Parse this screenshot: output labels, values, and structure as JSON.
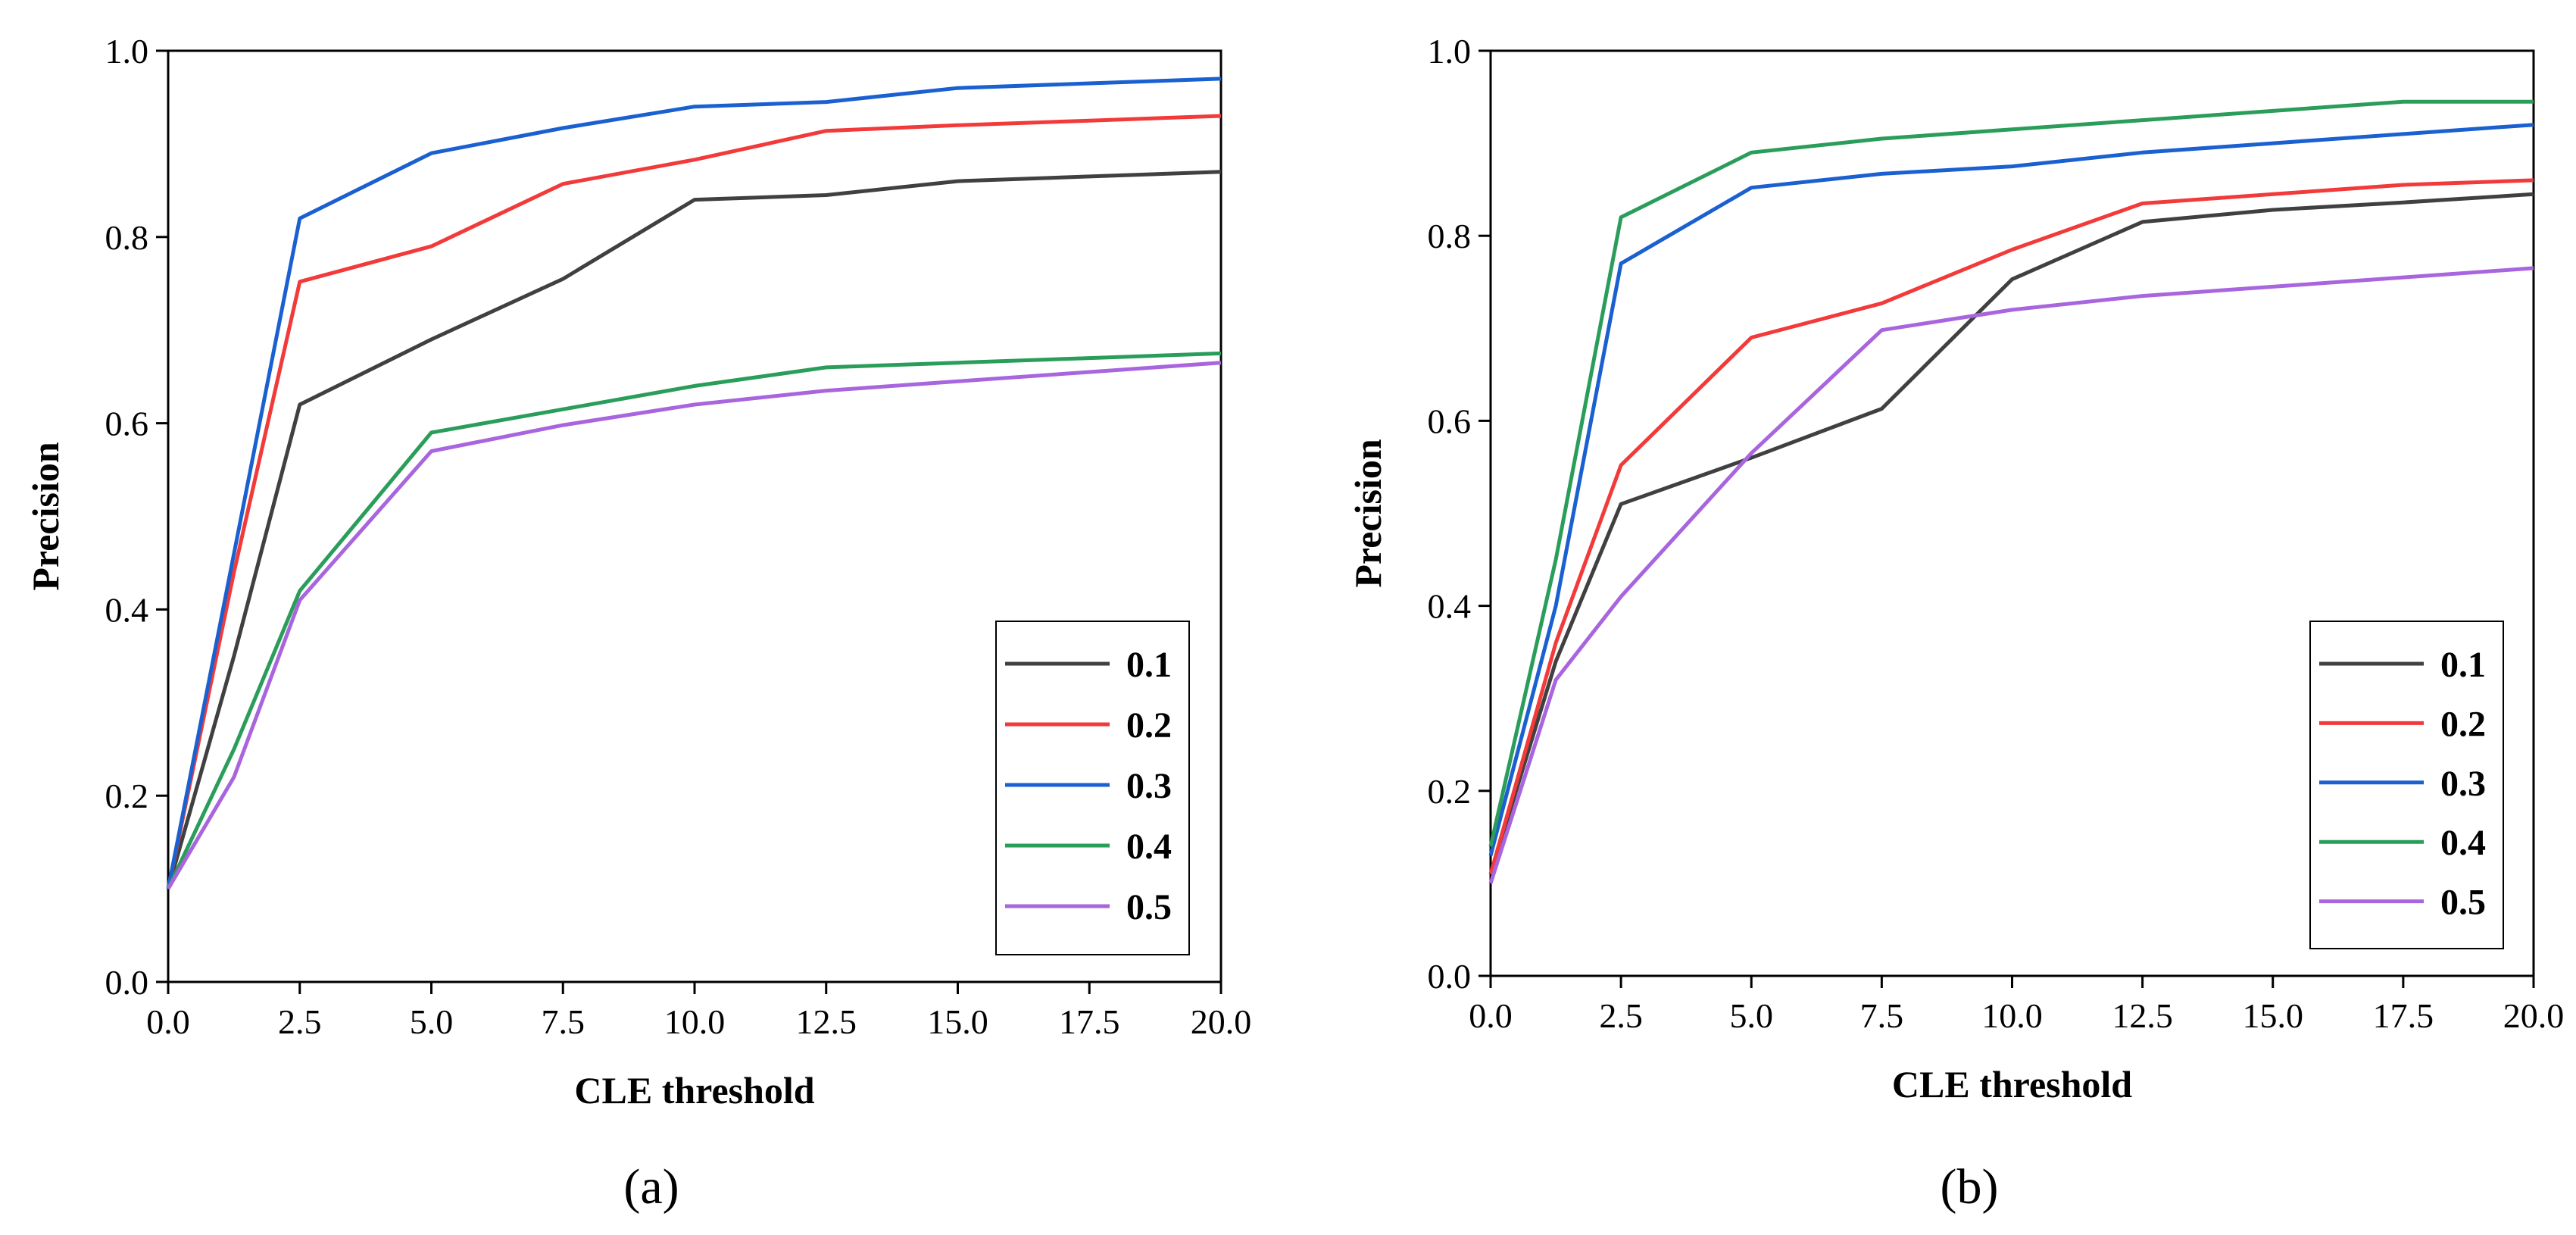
{
  "chart_data": [
    {
      "type": "line",
      "panel_label": "(a)",
      "xlabel": "CLE threshold",
      "ylabel": "Precision",
      "xlim": [
        0,
        20
      ],
      "ylim": [
        0,
        1
      ],
      "xticks": [
        "0.0",
        "2.5",
        "5.0",
        "7.5",
        "10.0",
        "12.5",
        "15.0",
        "17.5",
        "20.0"
      ],
      "yticks": [
        "0.0",
        "0.2",
        "0.4",
        "0.6",
        "0.8",
        "1.0"
      ],
      "grid": false,
      "legend": "bottom-right",
      "series": [
        {
          "name": "0.1",
          "color": "#404040",
          "points": [
            [
              0,
              0.1
            ],
            [
              1.25,
              0.35
            ],
            [
              2.5,
              0.62
            ],
            [
              5,
              0.69
            ],
            [
              7.5,
              0.755
            ],
            [
              10,
              0.84
            ],
            [
              12.5,
              0.845
            ],
            [
              15,
              0.86
            ],
            [
              17.5,
              0.865
            ],
            [
              20,
              0.87
            ]
          ]
        },
        {
          "name": "0.2",
          "color": "#f23a3a",
          "points": [
            [
              0,
              0.1
            ],
            [
              1.25,
              0.44
            ],
            [
              2.5,
              0.752
            ],
            [
              5,
              0.79
            ],
            [
              7.5,
              0.857
            ],
            [
              10,
              0.883
            ],
            [
              12.5,
              0.914
            ],
            [
              15,
              0.92
            ],
            [
              17.5,
              0.925
            ],
            [
              20,
              0.93
            ]
          ]
        },
        {
          "name": "0.3",
          "color": "#1a60d0",
          "points": [
            [
              0,
              0.1
            ],
            [
              1.25,
              0.46
            ],
            [
              2.5,
              0.82
            ],
            [
              5,
              0.89
            ],
            [
              7.5,
              0.917
            ],
            [
              10,
              0.94
            ],
            [
              12.5,
              0.945
            ],
            [
              15,
              0.96
            ],
            [
              17.5,
              0.965
            ],
            [
              20,
              0.97
            ]
          ]
        },
        {
          "name": "0.4",
          "color": "#2a9d5a",
          "points": [
            [
              0,
              0.1
            ],
            [
              1.25,
              0.25
            ],
            [
              2.5,
              0.42
            ],
            [
              5,
              0.59
            ],
            [
              7.5,
              0.615
            ],
            [
              10,
              0.64
            ],
            [
              12.5,
              0.66
            ],
            [
              15,
              0.665
            ],
            [
              17.5,
              0.67
            ],
            [
              20,
              0.675
            ]
          ]
        },
        {
          "name": "0.5",
          "color": "#a865de",
          "points": [
            [
              0,
              0.1
            ],
            [
              1.25,
              0.22
            ],
            [
              2.5,
              0.41
            ],
            [
              5,
              0.57
            ],
            [
              7.5,
              0.598
            ],
            [
              10,
              0.62
            ],
            [
              12.5,
              0.635
            ],
            [
              15,
              0.645
            ],
            [
              17.5,
              0.655
            ],
            [
              20,
              0.665
            ]
          ]
        }
      ]
    },
    {
      "type": "line",
      "panel_label": "(b)",
      "xlabel": "CLE threshold",
      "ylabel": "Precision",
      "xlim": [
        0,
        20
      ],
      "ylim": [
        0,
        1
      ],
      "xticks": [
        "0.0",
        "2.5",
        "5.0",
        "7.5",
        "10.0",
        "12.5",
        "15.0",
        "17.5",
        "20.0"
      ],
      "yticks": [
        "0.0",
        "0.2",
        "0.4",
        "0.6",
        "0.8",
        "1.0"
      ],
      "grid": false,
      "legend": "bottom-right",
      "series": [
        {
          "name": "0.1",
          "color": "#404040",
          "points": [
            [
              0,
              0.11
            ],
            [
              1.25,
              0.34
            ],
            [
              2.5,
              0.51
            ],
            [
              5,
              0.56
            ],
            [
              7.5,
              0.613
            ],
            [
              10,
              0.753
            ],
            [
              12.5,
              0.815
            ],
            [
              15,
              0.828
            ],
            [
              17.5,
              0.836
            ],
            [
              20,
              0.845
            ]
          ]
        },
        {
          "name": "0.2",
          "color": "#f23a3a",
          "points": [
            [
              0,
              0.11
            ],
            [
              1.25,
              0.36
            ],
            [
              2.5,
              0.552
            ],
            [
              5,
              0.69
            ],
            [
              7.5,
              0.727
            ],
            [
              10,
              0.785
            ],
            [
              12.5,
              0.835
            ],
            [
              15,
              0.845
            ],
            [
              17.5,
              0.855
            ],
            [
              20,
              0.86
            ]
          ]
        },
        {
          "name": "0.3",
          "color": "#1a60d0",
          "points": [
            [
              0,
              0.13
            ],
            [
              1.25,
              0.4
            ],
            [
              2.5,
              0.77
            ],
            [
              5,
              0.852
            ],
            [
              7.5,
              0.867
            ],
            [
              10,
              0.875
            ],
            [
              12.5,
              0.89
            ],
            [
              15,
              0.9
            ],
            [
              17.5,
              0.91
            ],
            [
              20,
              0.92
            ]
          ]
        },
        {
          "name": "0.4",
          "color": "#2a9d5a",
          "points": [
            [
              0,
              0.14
            ],
            [
              1.25,
              0.45
            ],
            [
              2.5,
              0.82
            ],
            [
              5,
              0.89
            ],
            [
              7.5,
              0.905
            ],
            [
              10,
              0.915
            ],
            [
              12.5,
              0.925
            ],
            [
              15,
              0.935
            ],
            [
              17.5,
              0.945
            ],
            [
              20,
              0.945
            ]
          ]
        },
        {
          "name": "0.5",
          "color": "#a865de",
          "points": [
            [
              0,
              0.1
            ],
            [
              1.25,
              0.32
            ],
            [
              2.5,
              0.41
            ],
            [
              5,
              0.565
            ],
            [
              7.5,
              0.698
            ],
            [
              10,
              0.72
            ],
            [
              12.5,
              0.735
            ],
            [
              15,
              0.745
            ],
            [
              17.5,
              0.755
            ],
            [
              20,
              0.765
            ]
          ]
        }
      ]
    }
  ]
}
